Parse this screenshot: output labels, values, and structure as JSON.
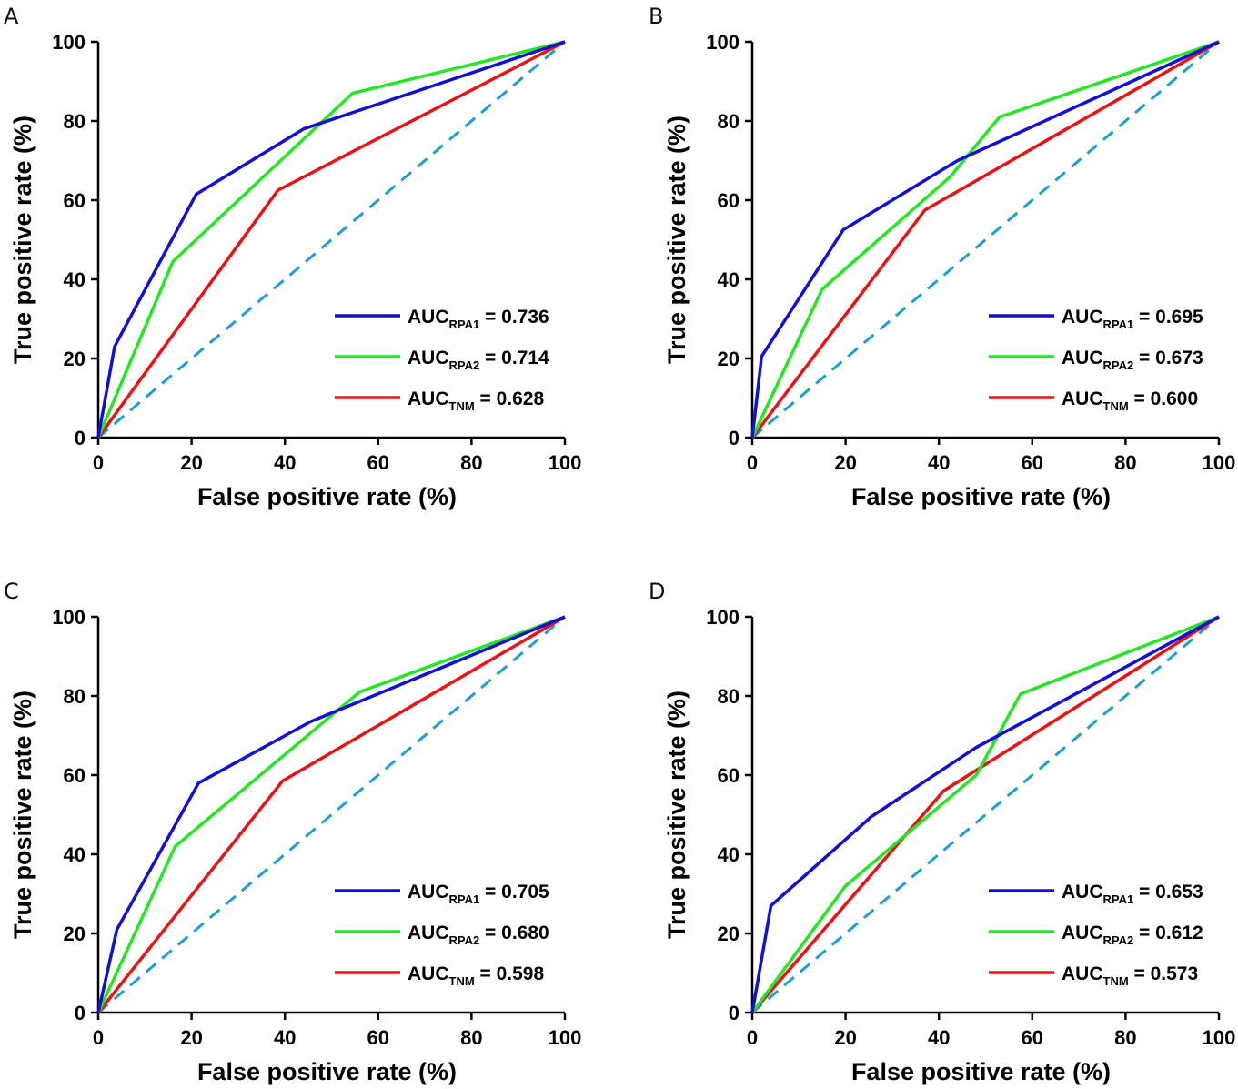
{
  "chart_data": [
    {
      "type": "line",
      "panel_label": "A",
      "xlabel": "False positive rate (%)",
      "ylabel": "True positive rate (%)",
      "xlim": [
        0,
        100
      ],
      "ylim": [
        0,
        100
      ],
      "xticks": [
        0,
        20,
        40,
        60,
        80,
        100
      ],
      "yticks": [
        0,
        20,
        40,
        60,
        80,
        100
      ],
      "legend_position": "lower-right",
      "reference_line": {
        "name": "chance",
        "color": "#1E9FD8",
        "dashed": true,
        "x": [
          0,
          100
        ],
        "y": [
          0,
          100
        ]
      },
      "series": [
        {
          "name": "AUC",
          "subscript": "RPA1",
          "value_text": "= 0.736",
          "color": "#1010DD",
          "x": [
            0,
            3.5,
            21,
            44,
            100
          ],
          "y": [
            0,
            23,
            61.5,
            78,
            100
          ]
        },
        {
          "name": "AUC",
          "subscript": "RPA2",
          "value_text": "= 0.714",
          "color": "#22E822",
          "x": [
            0,
            16,
            54.5,
            100
          ],
          "y": [
            0,
            44.5,
            87,
            100
          ]
        },
        {
          "name": "AUC",
          "subscript": "TNM",
          "value_text": "= 0.628",
          "color": "#EE1111",
          "x": [
            0,
            38.5,
            100
          ],
          "y": [
            0,
            62.5,
            100
          ]
        }
      ]
    },
    {
      "type": "line",
      "panel_label": "B",
      "xlabel": "False positive rate (%)",
      "ylabel": "True positive rate (%)",
      "xlim": [
        0,
        100
      ],
      "ylim": [
        0,
        100
      ],
      "xticks": [
        0,
        20,
        40,
        60,
        80,
        100
      ],
      "yticks": [
        0,
        20,
        40,
        60,
        80,
        100
      ],
      "legend_position": "lower-right",
      "reference_line": {
        "name": "chance",
        "color": "#1E9FD8",
        "dashed": true,
        "x": [
          0,
          100
        ],
        "y": [
          0,
          100
        ]
      },
      "series": [
        {
          "name": "AUC",
          "subscript": "RPA1",
          "value_text": "= 0.695",
          "color": "#1010DD",
          "x": [
            0,
            2,
            19.5,
            44,
            100
          ],
          "y": [
            0,
            20.5,
            52.5,
            70,
            100
          ]
        },
        {
          "name": "AUC",
          "subscript": "RPA2",
          "value_text": "= 0.673",
          "color": "#22E822",
          "x": [
            0,
            15,
            42.5,
            53,
            100
          ],
          "y": [
            0,
            37.5,
            66,
            81,
            100
          ]
        },
        {
          "name": "AUC",
          "subscript": "TNM",
          "value_text": "= 0.600",
          "color": "#EE1111",
          "x": [
            0,
            37,
            100
          ],
          "y": [
            0,
            57.5,
            100
          ]
        }
      ]
    },
    {
      "type": "line",
      "panel_label": "C",
      "xlabel": "False positive rate (%)",
      "ylabel": "True positive rate (%)",
      "xlim": [
        0,
        100
      ],
      "ylim": [
        0,
        100
      ],
      "xticks": [
        0,
        20,
        40,
        60,
        80,
        100
      ],
      "yticks": [
        0,
        20,
        40,
        60,
        80,
        100
      ],
      "legend_position": "lower-right",
      "reference_line": {
        "name": "chance",
        "color": "#1E9FD8",
        "dashed": true,
        "x": [
          0,
          100
        ],
        "y": [
          0,
          100
        ]
      },
      "series": [
        {
          "name": "AUC",
          "subscript": "RPA1",
          "value_text": "= 0.705",
          "color": "#1010DD",
          "x": [
            0,
            4,
            21.5,
            45.5,
            100
          ],
          "y": [
            0,
            21,
            58,
            73.5,
            100
          ]
        },
        {
          "name": "AUC",
          "subscript": "RPA2",
          "value_text": "= 0.680",
          "color": "#22E822",
          "x": [
            0,
            16.5,
            56,
            100
          ],
          "y": [
            0,
            42,
            81,
            100
          ]
        },
        {
          "name": "AUC",
          "subscript": "TNM",
          "value_text": "= 0.598",
          "color": "#EE1111",
          "x": [
            0,
            39.5,
            100
          ],
          "y": [
            0,
            58.5,
            100
          ]
        }
      ]
    },
    {
      "type": "line",
      "panel_label": "D",
      "xlabel": "False positive rate (%)",
      "ylabel": "True positive rate (%)",
      "xlim": [
        0,
        100
      ],
      "ylim": [
        0,
        100
      ],
      "xticks": [
        0,
        20,
        40,
        60,
        80,
        100
      ],
      "yticks": [
        0,
        20,
        40,
        60,
        80,
        100
      ],
      "legend_position": "lower-right",
      "reference_line": {
        "name": "chance",
        "color": "#1E9FD8",
        "dashed": true,
        "x": [
          0,
          100
        ],
        "y": [
          0,
          100
        ]
      },
      "series": [
        {
          "name": "AUC",
          "subscript": "RPA1",
          "value_text": "= 0.653",
          "color": "#1010DD",
          "x": [
            0,
            4,
            25.5,
            48,
            100
          ],
          "y": [
            0,
            27,
            49.5,
            67,
            100
          ]
        },
        {
          "name": "AUC",
          "subscript": "RPA2",
          "value_text": "= 0.612",
          "color": "#22E822",
          "x": [
            0,
            20,
            48,
            57.5,
            100
          ],
          "y": [
            0,
            32,
            60,
            80.5,
            100
          ]
        },
        {
          "name": "AUC",
          "subscript": "TNM",
          "value_text": "= 0.573",
          "color": "#EE1111",
          "x": [
            0,
            41,
            100
          ],
          "y": [
            0,
            56,
            100
          ]
        }
      ]
    }
  ]
}
